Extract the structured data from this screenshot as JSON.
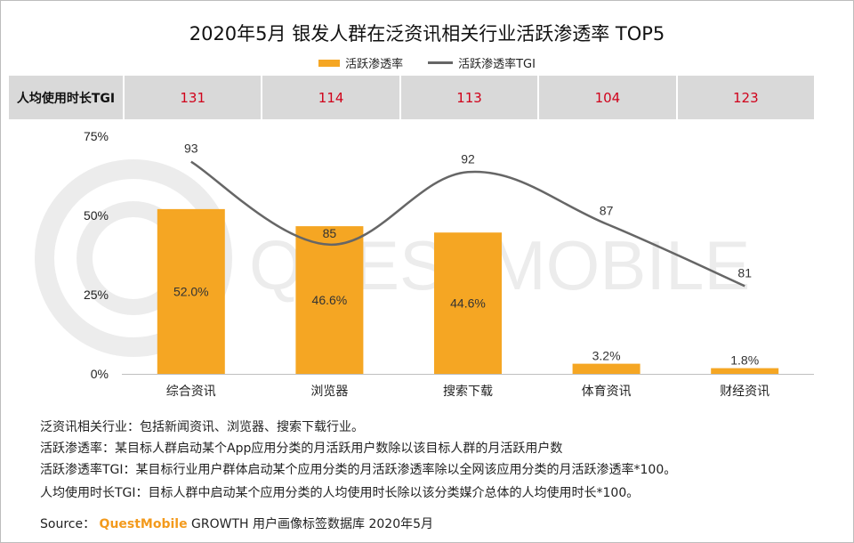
{
  "title": "2020年5月 银发人群在泛资讯相关行业活跃渗透率 TOP5",
  "legend": {
    "bar": "活跃渗透率",
    "line": "活跃渗透率TGI"
  },
  "tgi_row": {
    "label": "人均使用时长TGI",
    "values": [
      "131",
      "114",
      "113",
      "104",
      "123"
    ]
  },
  "chart_data": {
    "type": "bar",
    "title": "2020年5月 银发人群在泛资讯相关行业活跃渗透率 TOP5",
    "categories": [
      "综合资讯",
      "浏览器",
      "搜索下载",
      "体育资讯",
      "财经资讯"
    ],
    "series": [
      {
        "name": "活跃渗透率",
        "type": "bar",
        "values": [
          52.0,
          46.6,
          44.6,
          3.2,
          1.8
        ],
        "labels": [
          "52.0%",
          "46.6%",
          "44.6%",
          "3.2%",
          "1.8%"
        ]
      },
      {
        "name": "活跃渗透率TGI",
        "type": "line",
        "values": [
          93,
          85,
          92,
          87,
          81
        ],
        "labels": [
          "93",
          "85",
          "92",
          "87",
          "81"
        ]
      }
    ],
    "yticks": [
      "0%",
      "25%",
      "50%",
      "75%"
    ],
    "ylim": [
      0,
      75
    ],
    "grid": false,
    "colors": {
      "bar": "#F5A623",
      "line": "#666666",
      "tgi_text": "#d0021b"
    }
  },
  "watermark": "QUESTMOBILE",
  "notes": [
    "泛资讯相关行业：包括新闻资讯、浏览器、搜索下载行业。",
    "活跃渗透率：某目标人群启动某个App应用分类的月活跃用户数除以该目标人群的月活跃用户数",
    "活跃渗透率TGI：某目标行业用户群体启动某个应用分类的月活跃渗透率除以全网该应用分类的月活跃渗透率*100。",
    "人均使用时长TGI：目标人群中启动某个应用分类的人均使用时长除以该分类媒介总体的人均使用时长*100。"
  ],
  "source": {
    "prefix": "Source：",
    "brand": "QuestMobile",
    "suffix": " GROWTH 用户画像标签数据库 2020年5月"
  }
}
